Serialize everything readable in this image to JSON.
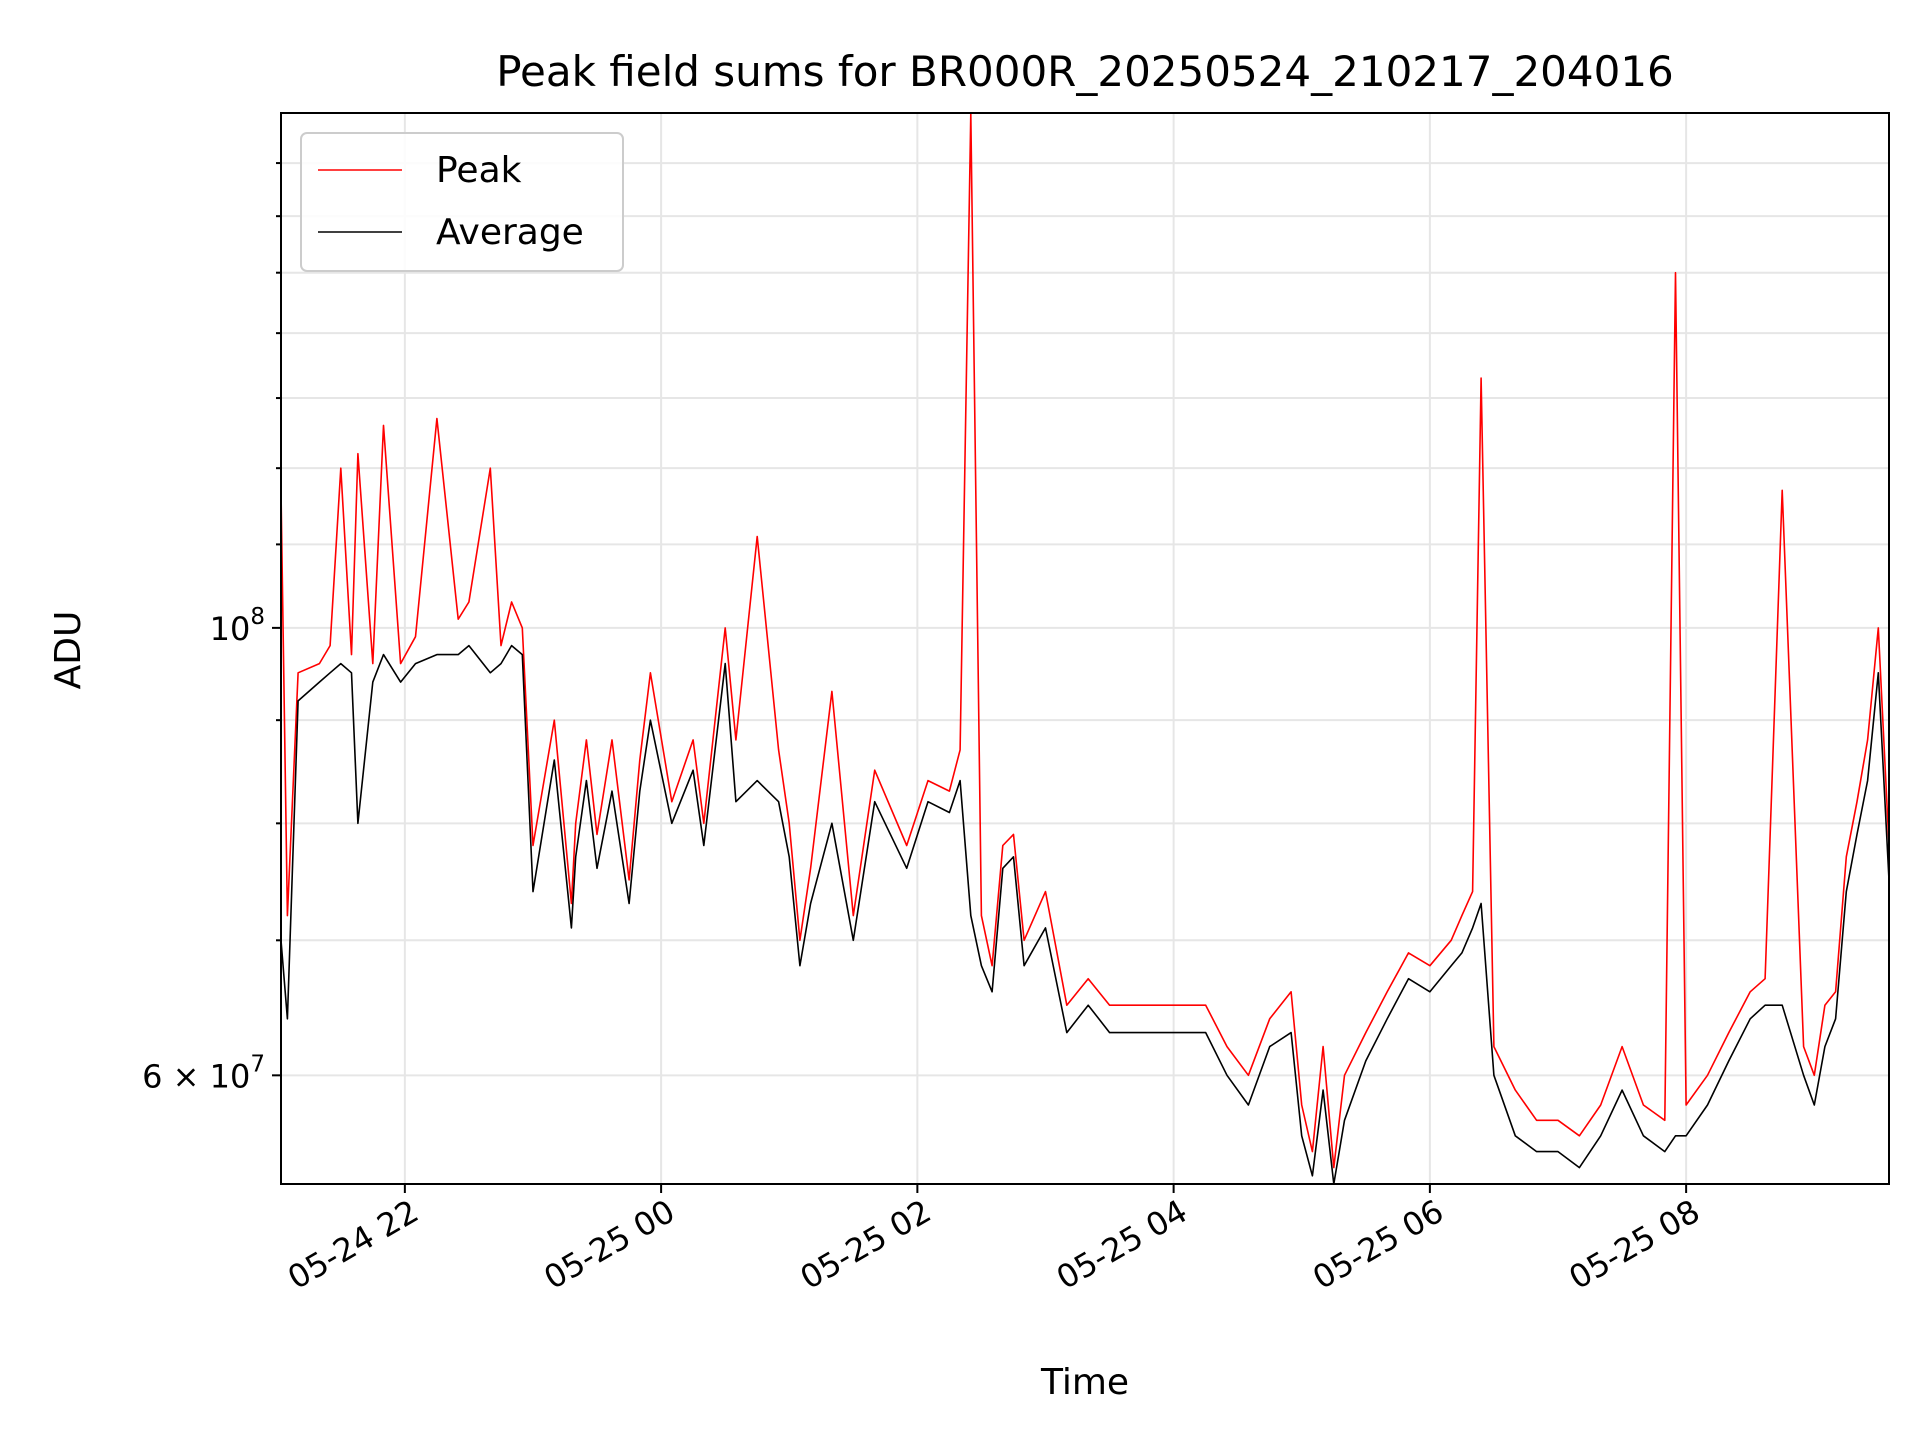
{
  "chart_data": {
    "type": "line",
    "title": "Peak field sums for BR000R_20250524_210217_204016",
    "xlabel": "Time",
    "ylabel": "ADU",
    "xlim": [
      "2025-05-24 21:02",
      "2025-05-25 09:35"
    ],
    "ylim": [
      53000000,
      180000000
    ],
    "y_scale": "log",
    "grid": true,
    "legend_position": "top-left",
    "x_ticks": [
      {
        "value": "2025-05-24 22:00",
        "label": "05-24 22"
      },
      {
        "value": "2025-05-25 00:00",
        "label": "05-25 00"
      },
      {
        "value": "2025-05-25 02:00",
        "label": "05-25 02"
      },
      {
        "value": "2025-05-25 04:00",
        "label": "05-25 04"
      },
      {
        "value": "2025-05-25 06:00",
        "label": "05-25 06"
      },
      {
        "value": "2025-05-25 08:00",
        "label": "05-25 08"
      }
    ],
    "y_ticks": [
      {
        "value": 100000000,
        "label_base": "10",
        "label_exp": "8"
      },
      {
        "value": 60000000,
        "label_base": "6 × 10",
        "label_exp": "7"
      }
    ],
    "series": [
      {
        "name": "Peak",
        "color": "#ff0000",
        "x": [
          "2025-05-24 21:02",
          "2025-05-24 21:05",
          "2025-05-24 21:10",
          "2025-05-24 21:20",
          "2025-05-24 21:25",
          "2025-05-24 21:30",
          "2025-05-24 21:35",
          "2025-05-24 21:38",
          "2025-05-24 21:45",
          "2025-05-24 21:50",
          "2025-05-24 21:58",
          "2025-05-24 22:05",
          "2025-05-24 22:15",
          "2025-05-24 22:25",
          "2025-05-24 22:30",
          "2025-05-24 22:40",
          "2025-05-24 22:45",
          "2025-05-24 22:50",
          "2025-05-24 22:55",
          "2025-05-24 23:00",
          "2025-05-24 23:10",
          "2025-05-24 23:18",
          "2025-05-24 23:20",
          "2025-05-24 23:25",
          "2025-05-24 23:30",
          "2025-05-24 23:37",
          "2025-05-24 23:45",
          "2025-05-24 23:50",
          "2025-05-24 23:55",
          "2025-05-25 00:05",
          "2025-05-25 00:15",
          "2025-05-25 00:20",
          "2025-05-25 00:30",
          "2025-05-25 00:35",
          "2025-05-25 00:45",
          "2025-05-25 00:55",
          "2025-05-25 01:00",
          "2025-05-25 01:05",
          "2025-05-25 01:10",
          "2025-05-25 01:20",
          "2025-05-25 01:30",
          "2025-05-25 01:40",
          "2025-05-25 01:55",
          "2025-05-25 02:05",
          "2025-05-25 02:15",
          "2025-05-25 02:20",
          "2025-05-25 02:25",
          "2025-05-25 02:30",
          "2025-05-25 02:35",
          "2025-05-25 02:40",
          "2025-05-25 02:45",
          "2025-05-25 02:50",
          "2025-05-25 03:00",
          "2025-05-25 03:10",
          "2025-05-25 03:20",
          "2025-05-25 03:30",
          "2025-05-25 03:45",
          "2025-05-25 04:00",
          "2025-05-25 04:15",
          "2025-05-25 04:25",
          "2025-05-25 04:35",
          "2025-05-25 04:45",
          "2025-05-25 04:55",
          "2025-05-25 05:00",
          "2025-05-25 05:05",
          "2025-05-25 05:10",
          "2025-05-25 05:15",
          "2025-05-25 05:20",
          "2025-05-25 05:30",
          "2025-05-25 05:40",
          "2025-05-25 05:50",
          "2025-05-25 06:00",
          "2025-05-25 06:10",
          "2025-05-25 06:15",
          "2025-05-25 06:20",
          "2025-05-25 06:24",
          "2025-05-25 06:30",
          "2025-05-25 06:40",
          "2025-05-25 06:50",
          "2025-05-25 07:00",
          "2025-05-25 07:10",
          "2025-05-25 07:20",
          "2025-05-25 07:30",
          "2025-05-25 07:40",
          "2025-05-25 07:50",
          "2025-05-25 07:55",
          "2025-05-25 08:00",
          "2025-05-25 08:10",
          "2025-05-25 08:20",
          "2025-05-25 08:30",
          "2025-05-25 08:37",
          "2025-05-25 08:45",
          "2025-05-25 08:55",
          "2025-05-25 09:00",
          "2025-05-25 09:05",
          "2025-05-25 09:10",
          "2025-05-25 09:15",
          "2025-05-25 09:20",
          "2025-05-25 09:25",
          "2025-05-25 09:30",
          "2025-05-25 09:35"
        ],
        "y": [
          117000000,
          72000000,
          95000000,
          96000000,
          98000000,
          120000000,
          97000000,
          122000000,
          96000000,
          126000000,
          96000000,
          99000000,
          127000000,
          101000000,
          103000000,
          120000000,
          98000000,
          103000000,
          100000000,
          78000000,
          90000000,
          73000000,
          80000000,
          88000000,
          79000000,
          88000000,
          75000000,
          86000000,
          95000000,
          82000000,
          88000000,
          80000000,
          100000000,
          88000000,
          111000000,
          87000000,
          80000000,
          70000000,
          76000000,
          93000000,
          72000000,
          85000000,
          78000000,
          84000000,
          83000000,
          87000000,
          180000000,
          72000000,
          68000000,
          78000000,
          79000000,
          70000000,
          74000000,
          65000000,
          67000000,
          65000000,
          65000000,
          65000000,
          65000000,
          62000000,
          60000000,
          64000000,
          66000000,
          58000000,
          55000000,
          62000000,
          54000000,
          60000000,
          63000000,
          66000000,
          69000000,
          68000000,
          70000000,
          72000000,
          74000000,
          133000000,
          62000000,
          59000000,
          57000000,
          57000000,
          56000000,
          58000000,
          62000000,
          58000000,
          57000000,
          150000000,
          58000000,
          60000000,
          63000000,
          66000000,
          67000000,
          117000000,
          62000000,
          60000000,
          65000000,
          66000000,
          77000000,
          82000000,
          88000000,
          100000000,
          78000000
        ]
      },
      {
        "name": "Average",
        "color": "#000000",
        "x": [
          "2025-05-24 21:02",
          "2025-05-24 21:05",
          "2025-05-24 21:10",
          "2025-05-24 21:20",
          "2025-05-24 21:25",
          "2025-05-24 21:30",
          "2025-05-24 21:35",
          "2025-05-24 21:38",
          "2025-05-24 21:45",
          "2025-05-24 21:50",
          "2025-05-24 21:58",
          "2025-05-24 22:05",
          "2025-05-24 22:15",
          "2025-05-24 22:25",
          "2025-05-24 22:30",
          "2025-05-24 22:40",
          "2025-05-24 22:45",
          "2025-05-24 22:50",
          "2025-05-24 22:55",
          "2025-05-24 23:00",
          "2025-05-24 23:10",
          "2025-05-24 23:18",
          "2025-05-24 23:20",
          "2025-05-24 23:25",
          "2025-05-24 23:30",
          "2025-05-24 23:37",
          "2025-05-24 23:45",
          "2025-05-24 23:50",
          "2025-05-24 23:55",
          "2025-05-25 00:05",
          "2025-05-25 00:15",
          "2025-05-25 00:20",
          "2025-05-25 00:30",
          "2025-05-25 00:35",
          "2025-05-25 00:45",
          "2025-05-25 00:55",
          "2025-05-25 01:00",
          "2025-05-25 01:05",
          "2025-05-25 01:10",
          "2025-05-25 01:20",
          "2025-05-25 01:30",
          "2025-05-25 01:40",
          "2025-05-25 01:55",
          "2025-05-25 02:05",
          "2025-05-25 02:15",
          "2025-05-25 02:20",
          "2025-05-25 02:25",
          "2025-05-25 02:30",
          "2025-05-25 02:35",
          "2025-05-25 02:40",
          "2025-05-25 02:45",
          "2025-05-25 02:50",
          "2025-05-25 03:00",
          "2025-05-25 03:10",
          "2025-05-25 03:20",
          "2025-05-25 03:30",
          "2025-05-25 03:45",
          "2025-05-25 04:00",
          "2025-05-25 04:15",
          "2025-05-25 04:25",
          "2025-05-25 04:35",
          "2025-05-25 04:45",
          "2025-05-25 04:55",
          "2025-05-25 05:00",
          "2025-05-25 05:05",
          "2025-05-25 05:10",
          "2025-05-25 05:15",
          "2025-05-25 05:20",
          "2025-05-25 05:30",
          "2025-05-25 05:40",
          "2025-05-25 05:50",
          "2025-05-25 06:00",
          "2025-05-25 06:10",
          "2025-05-25 06:15",
          "2025-05-25 06:20",
          "2025-05-25 06:24",
          "2025-05-25 06:30",
          "2025-05-25 06:40",
          "2025-05-25 06:50",
          "2025-05-25 07:00",
          "2025-05-25 07:10",
          "2025-05-25 07:20",
          "2025-05-25 07:30",
          "2025-05-25 07:40",
          "2025-05-25 07:50",
          "2025-05-25 07:55",
          "2025-05-25 08:00",
          "2025-05-25 08:10",
          "2025-05-25 08:20",
          "2025-05-25 08:30",
          "2025-05-25 08:37",
          "2025-05-25 08:45",
          "2025-05-25 08:55",
          "2025-05-25 09:00",
          "2025-05-25 09:05",
          "2025-05-25 09:10",
          "2025-05-25 09:15",
          "2025-05-25 09:20",
          "2025-05-25 09:25",
          "2025-05-25 09:30",
          "2025-05-25 09:35"
        ],
        "y": [
          70000000,
          64000000,
          92000000,
          94000000,
          95000000,
          96000000,
          95000000,
          80000000,
          94000000,
          97000000,
          94000000,
          96000000,
          97000000,
          97000000,
          98000000,
          95000000,
          96000000,
          98000000,
          97000000,
          74000000,
          86000000,
          71000000,
          77000000,
          84000000,
          76000000,
          83000000,
          73000000,
          83000000,
          90000000,
          80000000,
          85000000,
          78000000,
          96000000,
          82000000,
          84000000,
          82000000,
          77000000,
          68000000,
          73000000,
          80000000,
          70000000,
          82000000,
          76000000,
          82000000,
          81000000,
          84000000,
          72000000,
          68000000,
          66000000,
          76000000,
          77000000,
          68000000,
          71000000,
          63000000,
          65000000,
          63000000,
          63000000,
          63000000,
          63000000,
          60000000,
          58000000,
          62000000,
          63000000,
          56000000,
          53500000,
          59000000,
          53000000,
          57000000,
          61000000,
          64000000,
          67000000,
          66000000,
          68000000,
          69000000,
          71000000,
          73000000,
          60000000,
          56000000,
          55000000,
          55000000,
          54000000,
          56000000,
          59000000,
          56000000,
          55000000,
          56000000,
          56000000,
          58000000,
          61000000,
          64000000,
          65000000,
          65000000,
          60000000,
          58000000,
          62000000,
          64000000,
          74000000,
          79000000,
          84000000,
          95000000,
          75000000
        ]
      }
    ]
  }
}
